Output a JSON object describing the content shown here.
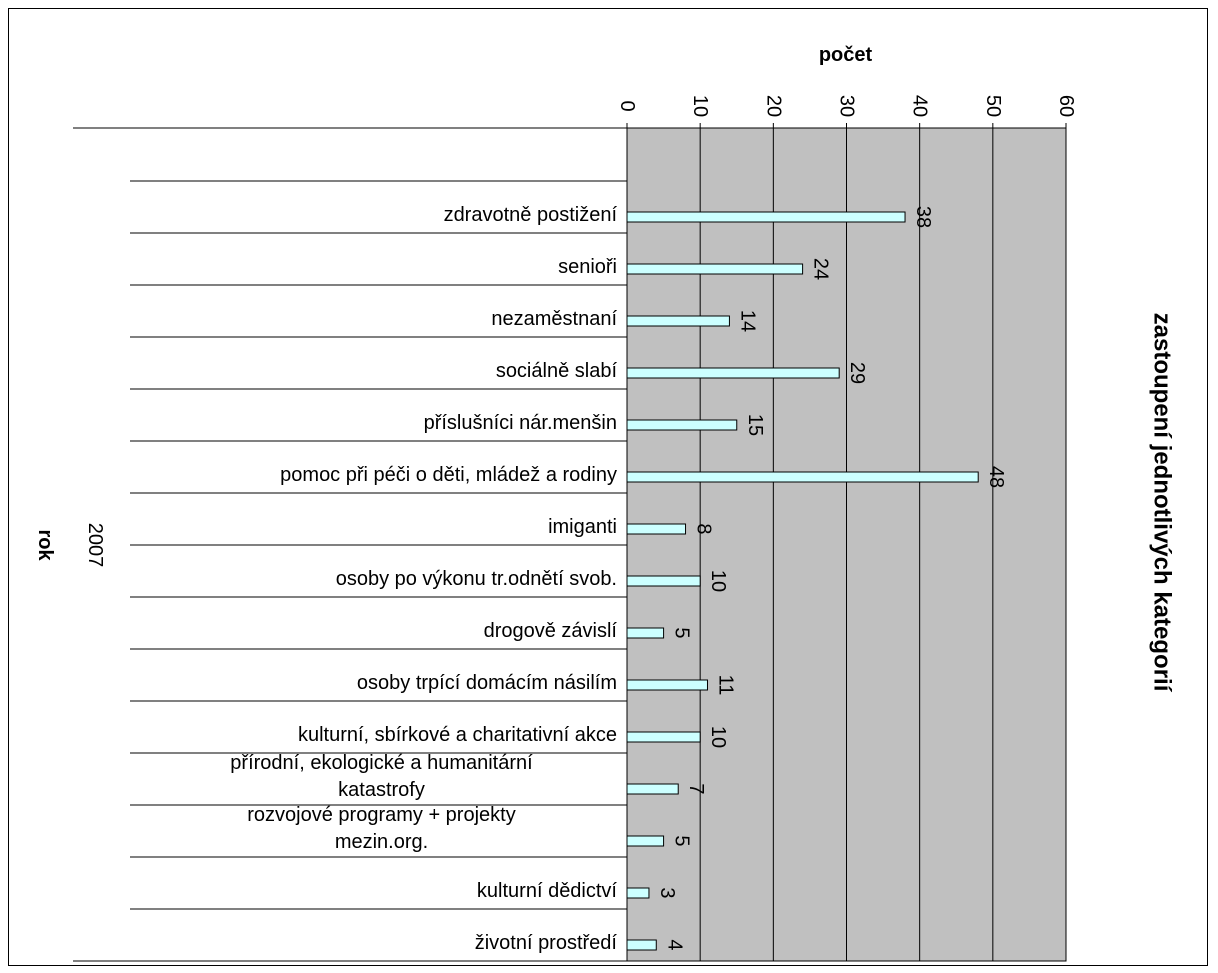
{
  "chart_data": {
    "type": "bar",
    "orientation": "horizontal",
    "title": "zastoupení jednotlivých kategorií",
    "value_axis_label": "počet",
    "category_axis_label": "rok",
    "group_label": "2007",
    "xlim": [
      0,
      60
    ],
    "ticks": [
      0,
      10,
      20,
      30,
      40,
      50,
      60
    ],
    "grid": true,
    "legend": "none",
    "plot_background": "#c0c0c0",
    "bar_fill": "#ccffff",
    "categories": [
      {
        "label": "zdravotně postižení",
        "value": 38
      },
      {
        "label": "senioři",
        "value": 24
      },
      {
        "label": "nezaměstnaní",
        "value": 14
      },
      {
        "label": "sociálně slabí",
        "value": 29
      },
      {
        "label": "příslušníci nár.menšin",
        "value": 15
      },
      {
        "label": "pomoc při péči o děti, mládež a rodiny",
        "value": 48
      },
      {
        "label": "imiganti",
        "value": 8
      },
      {
        "label": "osoby po výkonu tr.odnětí svob.",
        "value": 10
      },
      {
        "label": "drogově závislí",
        "value": 5
      },
      {
        "label": "osoby trpící domácím násilím",
        "value": 11
      },
      {
        "label": "kulturní, sbírkové a charitativní akce",
        "value": 10
      },
      {
        "label": "přírodní, ekologické a humanitární katastrofy",
        "value": 7
      },
      {
        "label": "rozvojové programy + projekty mezin.org.",
        "value": 5
      },
      {
        "label": "kulturní dědictví",
        "value": 3
      },
      {
        "label": "životní prostředí",
        "value": 4
      }
    ]
  }
}
